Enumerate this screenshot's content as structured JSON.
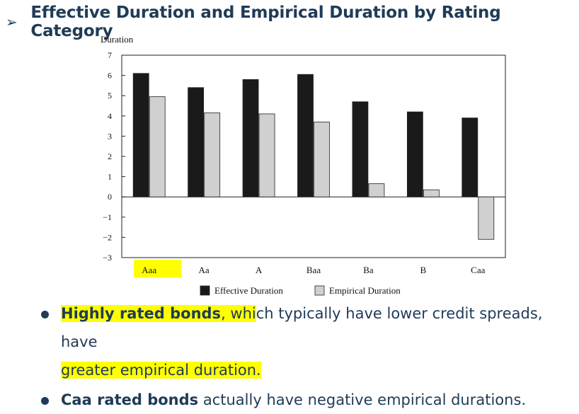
{
  "heading": {
    "bullet": "➢",
    "title": "Effective Duration and Empirical Duration by Rating Category"
  },
  "chart_data": {
    "type": "bar",
    "ylabel": "Duration",
    "ylim": [
      -3,
      7
    ],
    "yticks": [
      "7",
      "6",
      "5",
      "4",
      "3",
      "2",
      "1",
      "0",
      "−1",
      "−2",
      "−3"
    ],
    "categories": [
      "Aaa",
      "Aa",
      "A",
      "Baa",
      "Ba",
      "B",
      "Caa"
    ],
    "highlighted_category": "Aaa",
    "series": [
      {
        "name": "Effective Duration",
        "color": "#1a1a1a",
        "values": [
          6.1,
          5.4,
          5.8,
          6.05,
          4.7,
          4.2,
          3.9
        ]
      },
      {
        "name": "Empirical Duration",
        "color": "#d0d0d0",
        "values": [
          4.95,
          4.15,
          4.1,
          3.7,
          0.65,
          0.35,
          -2.1
        ]
      }
    ],
    "grid": false,
    "legend": "bottom"
  },
  "bullets": [
    {
      "parts": [
        {
          "text": "Highly rated bonds",
          "bold": true,
          "highlight": true
        },
        {
          "text": ", whi",
          "bold": false,
          "highlight": true
        },
        {
          "text": "ch typically have lower credit spreads, have",
          "bold": false,
          "highlight": false
        }
      ],
      "line2": {
        "text": "greater empirical duration.",
        "highlight": true
      }
    },
    {
      "parts": [
        {
          "text": "Caa rated bonds",
          "bold": true,
          "highlight": false
        },
        {
          "text": " actually have negative empirical durations.",
          "bold": false,
          "highlight": false
        }
      ]
    }
  ]
}
